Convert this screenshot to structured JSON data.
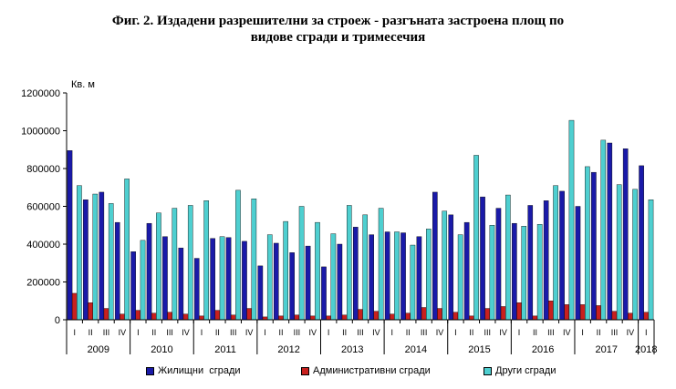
{
  "chart_data": {
    "type": "bar",
    "title_line1": "Фиг. 2. Издадени разрешителни за строеж - разгъната застроена площ по",
    "title_line2": "видове сгради и тримесечия",
    "unit_label": "Кв. м",
    "ylim": [
      0,
      1200000
    ],
    "yticks": [
      "0",
      "200000",
      "400000",
      "600000",
      "800000",
      "1000000",
      "1200000"
    ],
    "grid": false,
    "legend_position": "bottom",
    "categories": [
      "I",
      "II",
      "III",
      "IV",
      "I",
      "II",
      "III",
      "IV",
      "I",
      "II",
      "III",
      "IV",
      "I",
      "II",
      "III",
      "IV",
      "I",
      "II",
      "III",
      "IV",
      "I",
      "II",
      "III",
      "IV",
      "I",
      "II",
      "III",
      "IV",
      "I",
      "II",
      "III",
      "IV",
      "I",
      "II",
      "III",
      "IV",
      "I"
    ],
    "years": [
      {
        "label": "2009",
        "start": 0
      },
      {
        "label": "2010",
        "start": 4
      },
      {
        "label": "2011",
        "start": 8
      },
      {
        "label": "2012",
        "start": 12
      },
      {
        "label": "2013",
        "start": 16
      },
      {
        "label": "2014",
        "start": 20
      },
      {
        "label": "2015",
        "start": 24
      },
      {
        "label": "2016",
        "start": 28
      },
      {
        "label": "2017",
        "start": 32
      },
      {
        "label": "2018",
        "start": 36
      }
    ],
    "series": [
      {
        "name": "Жилищни  сгради",
        "color": "#1a1aa8",
        "values": [
          895000,
          635000,
          675000,
          515000,
          360000,
          510000,
          440000,
          380000,
          325000,
          430000,
          435000,
          415000,
          285000,
          405000,
          355000,
          390000,
          280000,
          400000,
          490000,
          450000,
          465000,
          460000,
          440000,
          675000,
          555000,
          515000,
          650000,
          590000,
          510000,
          605000,
          630000,
          680000,
          600000,
          780000,
          935000,
          905000,
          815000
        ]
      },
      {
        "name": "Административни сгради",
        "color": "#c8201e",
        "values": [
          140000,
          90000,
          60000,
          30000,
          50000,
          35000,
          40000,
          30000,
          20000,
          50000,
          25000,
          60000,
          15000,
          20000,
          25000,
          20000,
          20000,
          25000,
          55000,
          45000,
          30000,
          35000,
          65000,
          60000,
          40000,
          20000,
          60000,
          70000,
          90000,
          20000,
          100000,
          80000,
          80000,
          75000,
          45000,
          35000,
          40000
        ]
      },
      {
        "name": "Други сгради",
        "color": "#4ecfd0",
        "values": [
          710000,
          665000,
          615000,
          745000,
          420000,
          565000,
          590000,
          605000,
          630000,
          440000,
          685000,
          640000,
          450000,
          520000,
          600000,
          515000,
          455000,
          605000,
          555000,
          590000,
          465000,
          395000,
          480000,
          575000,
          450000,
          870000,
          500000,
          660000,
          495000,
          505000,
          710000,
          1055000,
          810000,
          950000,
          715000,
          690000,
          635000
        ]
      }
    ]
  }
}
